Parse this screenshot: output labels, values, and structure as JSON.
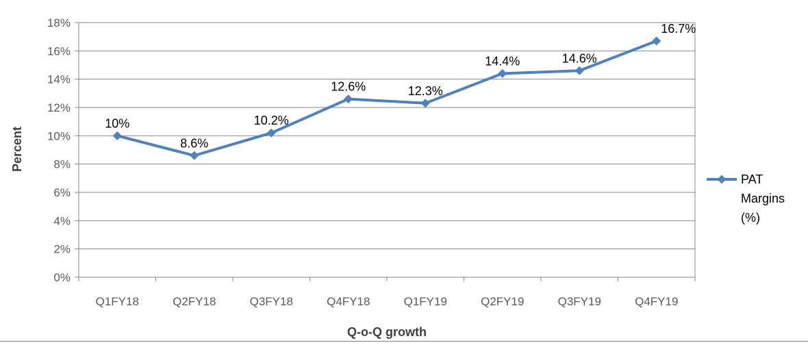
{
  "chart_data": {
    "type": "line",
    "title": "",
    "xlabel": "Q-o-Q growth",
    "ylabel": "Percent",
    "categories": [
      "Q1FY18",
      "Q2FY18",
      "Q3FY18",
      "Q4FY18",
      "Q1FY19",
      "Q2FY19",
      "Q3FY19",
      "Q4FY19"
    ],
    "series": [
      {
        "name": "PAT Margins (%)",
        "legend_lines": [
          "PAT",
          "Margins",
          "(%)"
        ],
        "values": [
          10,
          8.6,
          10.2,
          12.6,
          12.3,
          14.4,
          14.6,
          16.7
        ],
        "data_labels": [
          "10%",
          "8.6%",
          "10.2%",
          "12.6%",
          "12.3%",
          "14.4%",
          "14.6%",
          "16.7%"
        ],
        "color": "#4f81bd",
        "marker": "diamond"
      }
    ],
    "ylim": [
      0,
      18
    ],
    "ytick_step": 2,
    "ytick_labels": [
      "0%",
      "2%",
      "4%",
      "6%",
      "8%",
      "10%",
      "12%",
      "14%",
      "16%",
      "18%"
    ],
    "grid": true,
    "legend_position": "right"
  }
}
